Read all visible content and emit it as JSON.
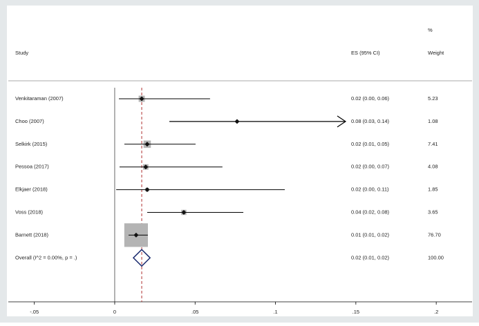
{
  "chart_data": {
    "type": "forest",
    "headers": {
      "study": "Study",
      "es": "ES (95% CI)",
      "weight_unit": "%",
      "weight": "Weight"
    },
    "studies": [
      {
        "name": "Venkitaraman (2007)",
        "es": 0.0168,
        "lo": 0.0026,
        "hi": 0.0593,
        "label": "0.02 (0.00, 0.06)",
        "weight": 5.23
      },
      {
        "name": "Choo (2007)",
        "es": 0.0761,
        "lo": 0.034,
        "hi": 0.1436,
        "label": "0.08 (0.03, 0.14)",
        "weight": 1.08,
        "arrow": true
      },
      {
        "name": "Selkirk (2015)",
        "es": 0.0202,
        "lo": 0.006,
        "hi": 0.0503,
        "label": "0.02 (0.01, 0.05)",
        "weight": 7.41
      },
      {
        "name": "Pessoa (2017)",
        "es": 0.0193,
        "lo": 0.003,
        "hi": 0.067,
        "label": "0.02 (0.00, 0.07)",
        "weight": 4.08
      },
      {
        "name": "Elkjaer (2018)",
        "es": 0.0202,
        "lo": 0.0009,
        "hi": 0.1058,
        "label": "0.02 (0.00, 0.11)",
        "weight": 1.85
      },
      {
        "name": "Voss (2018)",
        "es": 0.043,
        "lo": 0.0202,
        "hi": 0.08,
        "label": "0.04 (0.02, 0.08)",
        "weight": 3.65
      },
      {
        "name": "Barnett (2018)",
        "es": 0.0133,
        "lo": 0.0086,
        "hi": 0.0206,
        "label": "0.01 (0.01, 0.02)",
        "weight": {
          "value": 76.7,
          "label": "76.70"
        }
      }
    ],
    "overall": {
      "name": "Overall  (I^2 = 0.00%, p = .)",
      "es": 0.0168,
      "lo": 0.0116,
      "hi": 0.022,
      "label": "0.02 (0.01, 0.02)",
      "weight": {
        "value": 100,
        "label": "100.00"
      }
    },
    "xlim": [
      -0.0662,
      0.2223
    ],
    "xticks": [
      {
        "value": -0.05,
        "label": "-.05"
      },
      0,
      {
        "value": 0.05,
        "label": ".05"
      },
      {
        "value": 0.1,
        "label": ".1"
      },
      {
        "value": 0.15,
        "label": ".15"
      },
      {
        "value": 0.2,
        "label": ".2"
      }
    ],
    "colors": {
      "box": "#b4b4b4",
      "line": "#000000",
      "overall_line": "#b03030",
      "diamond": "#1a2a6e"
    }
  }
}
